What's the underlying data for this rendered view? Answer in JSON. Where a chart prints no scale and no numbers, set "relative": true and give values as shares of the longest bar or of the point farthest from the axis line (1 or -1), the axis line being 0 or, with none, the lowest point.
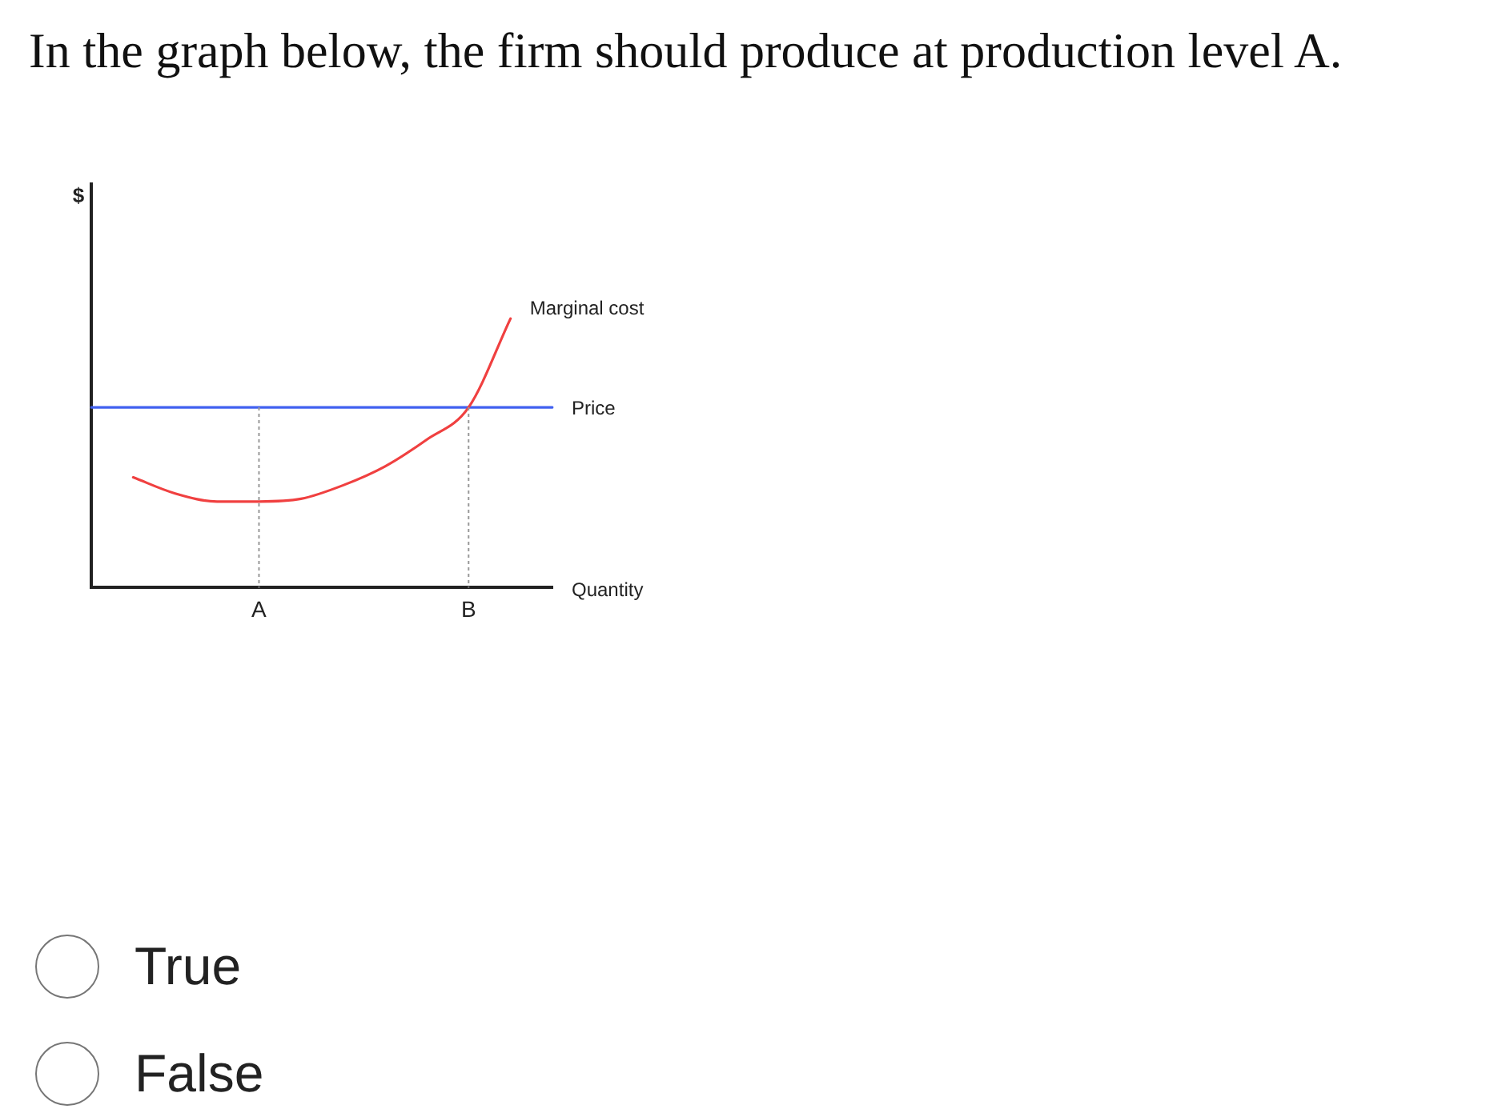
{
  "chart_data": {
    "type": "line",
    "title": "In the graph below, the firm should produce at production level A.",
    "xlabel": "Quantity",
    "relative": true,
    "legend": false,
    "grid": false,
    "marker": "none",
    "categories": [
      null,
      null,
      null,
      null,
      "A",
      null,
      null,
      null,
      null,
      "B",
      null,
      null
    ],
    "series": [
      {
        "name": "Marginal cost",
        "color": "#f04040",
        "values": [
          null,
          0.41,
          0.35,
          0.32,
          0.32,
          0.33,
          0.38,
          0.45,
          0.55,
          0.67,
          1,
          null
        ]
      },
      {
        "name": "Price",
        "color": "#4060f0",
        "values": [
          0.67,
          0.67,
          0.67,
          0.67,
          0.67,
          0.67,
          0.67,
          0.67,
          0.67,
          0.67,
          0.67,
          0.67
        ]
      }
    ],
    "ref_lines": [
      {
        "axis": "x",
        "value": "A",
        "line_style": "dotted",
        "color": "#999999"
      },
      {
        "axis": "x",
        "value": "B",
        "line_style": "dotted",
        "color": "#999999"
      }
    ],
    "annotations": [
      "$",
      "True",
      "False"
    ]
  }
}
